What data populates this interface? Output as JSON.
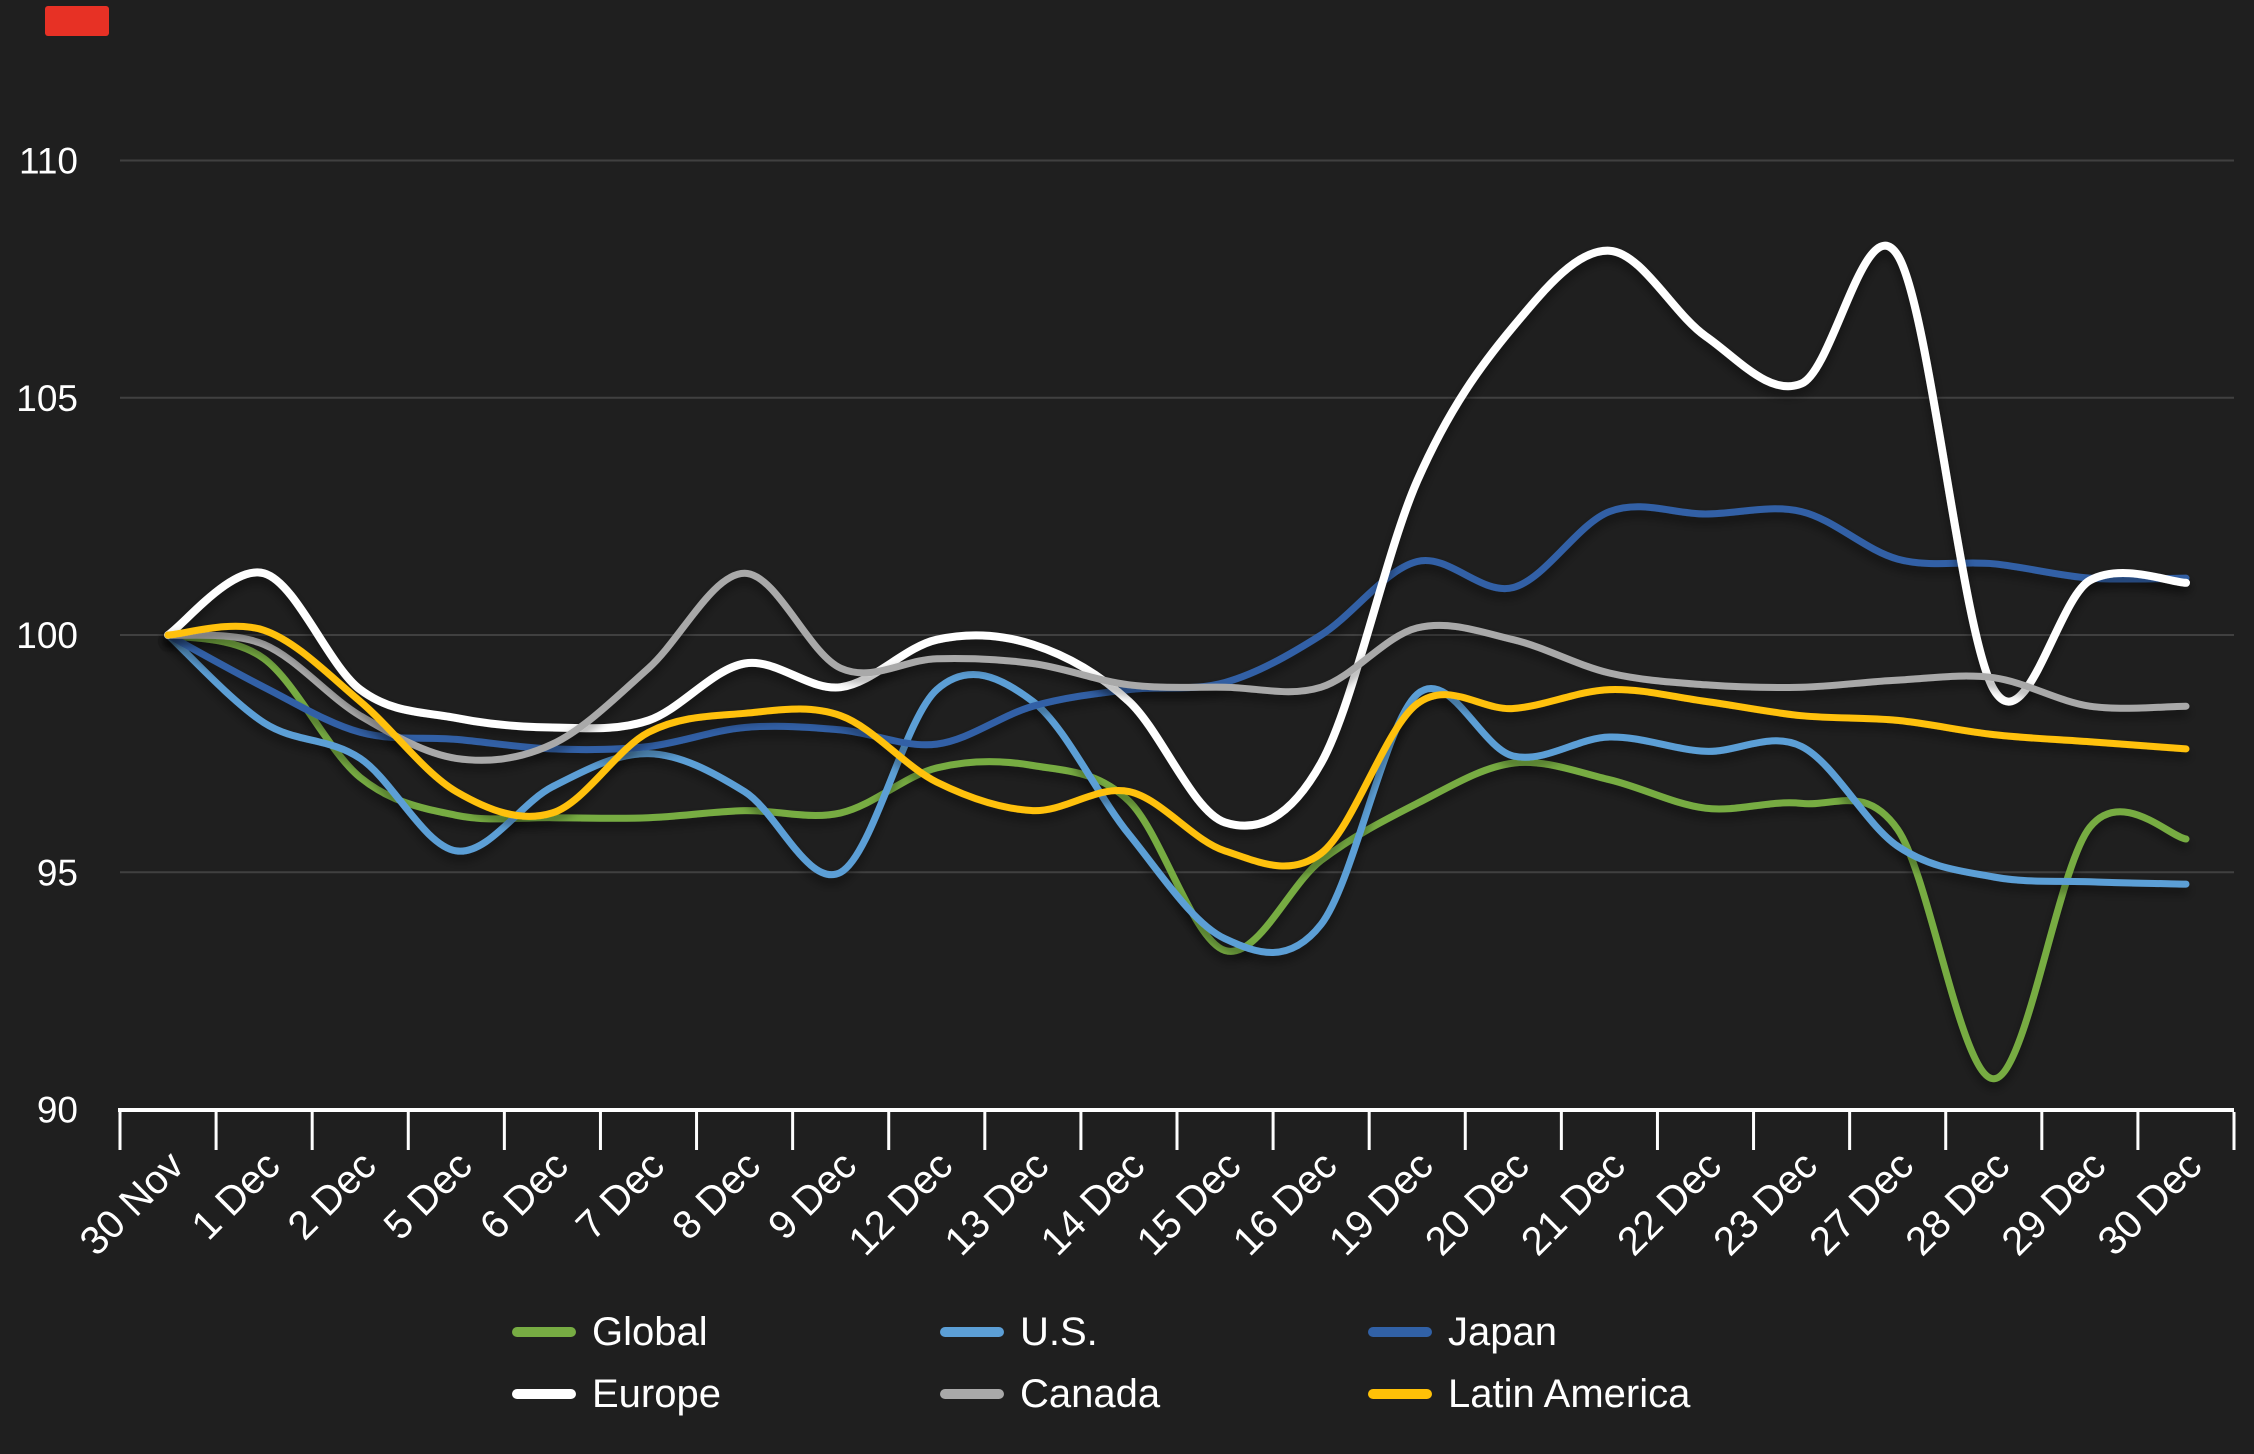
{
  "chart_data": {
    "type": "line",
    "title": "",
    "xlabel": "",
    "ylabel": "",
    "x_categories": [
      "30 Nov",
      "1 Dec",
      "2 Dec",
      "5 Dec",
      "6 Dec",
      "7 Dec",
      "8 Dec",
      "9 Dec",
      "12 Dec",
      "13 Dec",
      "14 Dec",
      "15 Dec",
      "16 Dec",
      "19 Dec",
      "20 Dec",
      "21 Dec",
      "22 Dec",
      "23 Dec",
      "27 Dec",
      "28 Dec",
      "29 Dec",
      "30 Dec"
    ],
    "ylim": [
      90,
      110
    ],
    "y_ticks": [
      90,
      95,
      100,
      105,
      110
    ],
    "grid": true,
    "smooth": true,
    "x_label_rotation": -45,
    "legend_position": "bottom",
    "background_color": "#1f1f1f",
    "gridline_color": "#404040",
    "axis_color": "#ffffff",
    "label_color": "#ffffff",
    "series": [
      {
        "name": "Global",
        "color": "#77AC43",
        "values": [
          100,
          99.5,
          97.0,
          96.2,
          96.15,
          96.15,
          96.3,
          96.25,
          97.2,
          97.25,
          96.5,
          93.35,
          95.25,
          96.45,
          97.3,
          96.95,
          96.35,
          96.45,
          95.9,
          90.65,
          95.95,
          95.7
        ]
      },
      {
        "name": "U.S.",
        "color": "#5C9FD6",
        "values": [
          100,
          98.15,
          97.4,
          95.45,
          96.8,
          97.5,
          96.7,
          95.0,
          98.85,
          98.6,
          95.8,
          93.6,
          93.9,
          98.75,
          97.45,
          97.85,
          97.55,
          97.65,
          95.55,
          94.9,
          94.8,
          94.75
        ]
      },
      {
        "name": "Japan",
        "color": "#3161A6",
        "values": [
          100,
          98.9,
          97.95,
          97.8,
          97.6,
          97.65,
          98.05,
          98.0,
          97.7,
          98.5,
          98.85,
          99.0,
          100.0,
          101.55,
          101.0,
          102.6,
          102.55,
          102.6,
          101.6,
          101.5,
          101.2,
          101.2
        ]
      },
      {
        "name": "Europe",
        "color": "#FFFFFF",
        "values": [
          100,
          101.3,
          98.85,
          98.25,
          98.05,
          98.2,
          99.4,
          98.9,
          99.9,
          99.8,
          98.6,
          96.05,
          97.3,
          103.25,
          106.5,
          108.1,
          106.3,
          105.3,
          108.0,
          98.85,
          101.15,
          101.1
        ]
      },
      {
        "name": "Canada",
        "color": "#A9A9A9",
        "values": [
          100,
          99.8,
          98.3,
          97.4,
          97.7,
          99.3,
          101.3,
          99.3,
          99.5,
          99.4,
          98.95,
          98.9,
          98.9,
          100.15,
          99.9,
          99.2,
          98.95,
          98.9,
          99.05,
          99.1,
          98.5,
          98.5
        ]
      },
      {
        "name": "Latin America",
        "color": "#FFC107",
        "values": [
          100,
          100.1,
          98.6,
          96.7,
          96.25,
          97.95,
          98.35,
          98.3,
          96.9,
          96.3,
          96.7,
          95.45,
          95.4,
          98.55,
          98.45,
          98.85,
          98.6,
          98.3,
          98.2,
          97.9,
          97.75,
          97.6
        ]
      }
    ]
  },
  "legend": {
    "items": [
      "Global",
      "U.S.",
      "Japan",
      "Europe",
      "Canada",
      "Latin America"
    ]
  },
  "artifact": {
    "color": "#E73125"
  }
}
